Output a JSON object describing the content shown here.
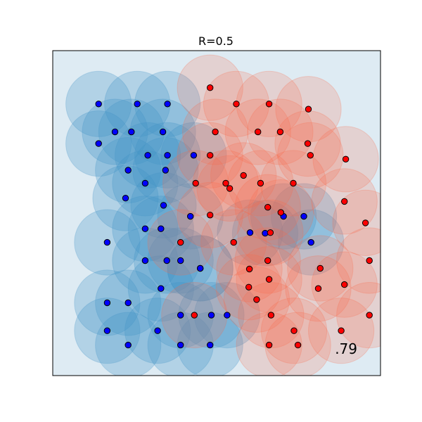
{
  "chart_data": {
    "type": "scatter",
    "title": "R=0.5",
    "score_text": ".79",
    "xlabel": "",
    "ylabel": "",
    "xlim": [
      -2.5,
      2.5
    ],
    "ylim": [
      -2.5,
      2.5
    ],
    "radius": 0.5,
    "axes_ticks": false,
    "grid": false,
    "colors": {
      "class_0": "#0000ff",
      "class_1": "#ff0000",
      "region_blue": "#4292c6",
      "region_red": "#fb6a4a",
      "background": "#deebf3"
    },
    "series": [
      {
        "values": [
          [
            -1.8,
            1.68
          ],
          [
            -1.21,
            1.68
          ],
          [
            -0.75,
            1.68
          ],
          [
            -1.3,
            1.25
          ],
          [
            -1.55,
            1.25
          ],
          [
            -0.82,
            1.25
          ],
          [
            -1.8,
            1.07
          ],
          [
            -1.05,
            0.89
          ],
          [
            -0.75,
            0.89
          ],
          [
            -0.35,
            0.89
          ],
          [
            -1.35,
            0.66
          ],
          [
            -0.78,
            0.66
          ],
          [
            -1.09,
            0.46
          ],
          [
            -1.39,
            0.23
          ],
          [
            -0.81,
            0.12
          ],
          [
            -0.4,
            -0.05
          ],
          [
            -0.85,
            -0.24
          ],
          [
            -1.09,
            -0.24
          ],
          [
            -1.67,
            -0.45
          ],
          [
            -0.76,
            -0.73
          ],
          [
            -1.09,
            -0.73
          ],
          [
            -0.55,
            -0.73
          ],
          [
            -0.25,
            -0.85
          ],
          [
            -0.85,
            -1.16
          ],
          [
            -1.67,
            -1.38
          ],
          [
            -1.35,
            -1.38
          ],
          [
            -0.55,
            -1.57
          ],
          [
            -0.08,
            -1.57
          ],
          [
            -1.67,
            -1.81
          ],
          [
            -0.9,
            -1.81
          ],
          [
            -1.35,
            -2.03
          ],
          [
            -0.55,
            -2.03
          ],
          [
            -0.1,
            -2.03
          ],
          [
            0.16,
            -1.57
          ],
          [
            -0.25,
            -0.85
          ],
          [
            1.02,
            -0.05
          ],
          [
            1.33,
            -0.05
          ],
          [
            1.44,
            -0.45
          ],
          [
            0.74,
            -0.31
          ],
          [
            0.51,
            -0.3
          ]
        ]
      },
      {
        "values": [
          [
            -0.1,
            1.93
          ],
          [
            0.3,
            1.68
          ],
          [
            0.8,
            1.68
          ],
          [
            1.4,
            1.6
          ],
          [
            -0.02,
            1.25
          ],
          [
            0.63,
            1.25
          ],
          [
            0.97,
            1.25
          ],
          [
            1.39,
            1.07
          ],
          [
            -0.1,
            0.89
          ],
          [
            1.43,
            0.89
          ],
          [
            1.97,
            0.83
          ],
          [
            -0.32,
            0.46
          ],
          [
            0.14,
            0.46
          ],
          [
            0.67,
            0.46
          ],
          [
            1.17,
            0.46
          ],
          [
            0.41,
            0.58
          ],
          [
            0.2,
            0.38
          ],
          [
            1.95,
            0.18
          ],
          [
            0.78,
            0.09
          ],
          [
            0.98,
            0.01
          ],
          [
            -0.1,
            -0.03
          ],
          [
            2.27,
            -0.15
          ],
          [
            0.82,
            -0.3
          ],
          [
            -0.55,
            -0.45
          ],
          [
            0.26,
            -0.45
          ],
          [
            2.33,
            -0.73
          ],
          [
            0.78,
            -0.73
          ],
          [
            0.5,
            -0.86
          ],
          [
            0.8,
            -1.02
          ],
          [
            1.95,
            -1.1
          ],
          [
            1.58,
            -0.85
          ],
          [
            0.49,
            -1.14
          ],
          [
            1.55,
            -1.16
          ],
          [
            -0.34,
            -1.57
          ],
          [
            0.83,
            -1.57
          ],
          [
            2.33,
            -1.57
          ],
          [
            1.18,
            -1.81
          ],
          [
            0.61,
            -1.33
          ],
          [
            0.8,
            -2.03
          ],
          [
            1.24,
            -2.03
          ],
          [
            1.9,
            -1.81
          ]
        ]
      }
    ]
  }
}
